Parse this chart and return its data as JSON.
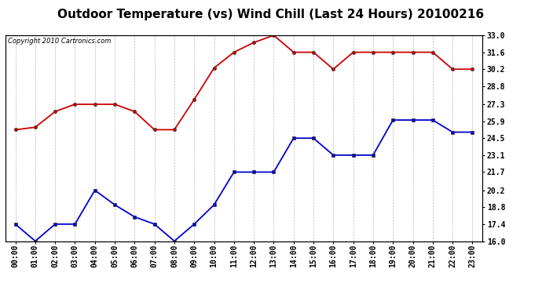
{
  "title": "Outdoor Temperature (vs) Wind Chill (Last 24 Hours) 20100216",
  "copyright": "Copyright 2010 Cartronics.com",
  "hours": [
    0,
    1,
    2,
    3,
    4,
    5,
    6,
    7,
    8,
    9,
    10,
    11,
    12,
    13,
    14,
    15,
    16,
    17,
    18,
    19,
    20,
    21,
    22,
    23
  ],
  "temp_red": [
    25.2,
    25.4,
    26.7,
    27.3,
    27.3,
    27.3,
    26.7,
    25.2,
    25.2,
    27.7,
    30.3,
    31.6,
    32.4,
    33.0,
    31.6,
    31.6,
    30.2,
    31.6,
    31.6,
    31.6,
    31.6,
    31.6,
    30.2,
    30.2
  ],
  "wind_chill_blue": [
    17.4,
    16.0,
    17.4,
    17.4,
    20.2,
    19.0,
    18.0,
    17.4,
    16.0,
    17.4,
    19.0,
    21.7,
    21.7,
    21.7,
    24.5,
    24.5,
    23.1,
    23.1,
    23.1,
    26.0,
    26.0,
    26.0,
    25.0,
    25.0
  ],
  "ylim": [
    16.0,
    33.0
  ],
  "yticks": [
    16.0,
    17.4,
    18.8,
    20.2,
    21.7,
    23.1,
    24.5,
    25.9,
    27.3,
    28.8,
    30.2,
    31.6,
    33.0
  ],
  "red_color": "#cc0000",
  "blue_color": "#0000cc",
  "background_color": "#ffffff",
  "plot_bg_color": "#ffffff",
  "grid_color": "#aaaaaa",
  "title_fontsize": 11,
  "label_fontsize": 7,
  "copyright_fontsize": 6
}
